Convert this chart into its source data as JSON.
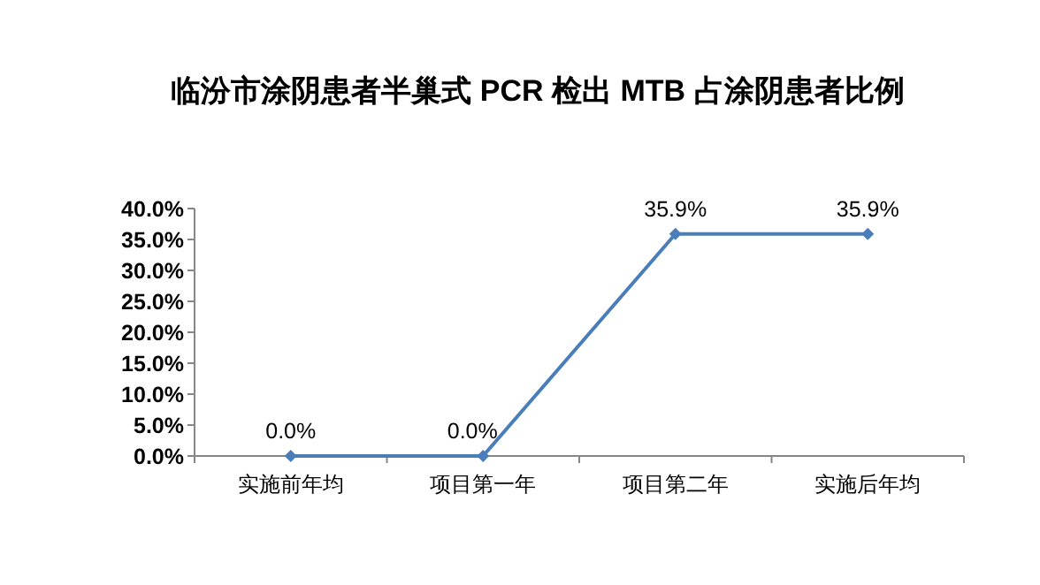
{
  "chart_data": {
    "type": "line",
    "title": "临汾市涂阴患者半巢式 PCR 检出 MTB 占涂阴患者比例",
    "categories": [
      "实施前年均",
      "项目第一年",
      "项目第二年",
      "实施后年均"
    ],
    "series": [
      {
        "color": "#4a7ebb",
        "values": [
          0,
          0,
          35.9,
          35.9
        ],
        "value_labels": [
          "0.0%",
          "0.0%",
          "35.9%",
          "35.9%"
        ]
      }
    ],
    "ylim": [
      0,
      40
    ],
    "yticks": [
      {
        "value": 0,
        "label": "0.0%"
      },
      {
        "value": 5,
        "label": "5.0%"
      },
      {
        "value": 10,
        "label": "10.0%"
      },
      {
        "value": 15,
        "label": "15.0%"
      },
      {
        "value": 20,
        "label": "20.0%"
      },
      {
        "value": 25,
        "label": "25.0%"
      },
      {
        "value": 30,
        "label": "30.0%"
      },
      {
        "value": 35,
        "label": "35.0%"
      },
      {
        "value": 40,
        "label": "40.0%"
      }
    ],
    "grid": false,
    "marker": "diamond",
    "line_style": "solid"
  }
}
